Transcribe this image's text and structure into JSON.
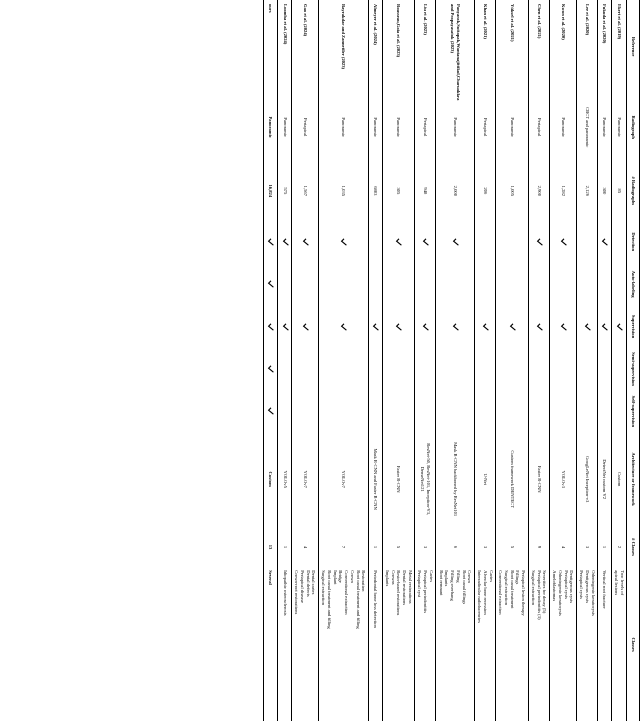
{
  "headers": {
    "ref": "Reference",
    "radiograph": "Radiograph",
    "n_radiographs": "# Radiographs",
    "detection": "Detection",
    "auto_labeling": "Auto-labeling",
    "supervision": "Supervision",
    "semi": "Semi-supervision",
    "self": "Self-supervision",
    "arch": "Architecture or framework",
    "n_classes": "# Classes",
    "classes": "Classes"
  },
  "footer": {
    "label": "ours",
    "radiograph": "Panoramic",
    "n_radiographs": "16,824",
    "n_classes": "13",
    "classes": "Several"
  },
  "rows": [
    {
      "ref": "Ekert et al. (2019)",
      "rad": "Panoramic",
      "n": "85",
      "det": false,
      "auto": false,
      "sup": true,
      "semi": false,
      "self": false,
      "arch": "Custom",
      "ncls": "2",
      "cls": [
        "Two levels of",
        "apical lesions"
      ]
    },
    {
      "ref": "Fukuda et al. (2020)",
      "rad": "Panoramic",
      "n": "300",
      "det": true,
      "auto": false,
      "sup": true,
      "semi": false,
      "self": false,
      "arch": "DetectNet custom V2",
      "ncls": "1",
      "cls": [
        "Vertical root fracture"
      ]
    },
    {
      "ref": "Lee et al. (2020)",
      "rad": "CBCT and panoramic",
      "n": "2,126",
      "det": false,
      "auto": false,
      "sup": true,
      "semi": false,
      "self": false,
      "arch": "GoogLeNet Inception-v3",
      "ncls": "3",
      "cls": [
        "Odontogenic keratocysts",
        "Dentigerous cysts",
        "Periapical cysts"
      ]
    },
    {
      "ref": "Kwon et al. (2020)",
      "rad": "Panoramic",
      "n": "1,282",
      "det": true,
      "auto": false,
      "sup": true,
      "semi": false,
      "self": false,
      "arch": "YOLOv3",
      "ncls": "4",
      "cls": [
        "Dentigerous cysts",
        "Periapical cysts",
        "Odontogenic keratocysts",
        "Ameloblastomas"
      ]
    },
    {
      "ref": "Chen et al. (2021)",
      "rad": "Periapical",
      "n": "2,900",
      "det": true,
      "auto": false,
      "sup": true,
      "semi": false,
      "self": false,
      "arch": "Faster R-CNN",
      "ncls": "9",
      "cls": [
        "Severities for decay (5)",
        "Periapical periodontitis (3)",
        "Surgical extraction"
      ]
    },
    {
      "ref": "Yüksel et al. (2021)",
      "rad": "Panoramic",
      "n": "1,005",
      "det": false,
      "auto": false,
      "sup": true,
      "semi": false,
      "self": false,
      "arch": "Custom framework DENTECT",
      "ncls": "5",
      "cls": [
        "Periapical lesion therapy",
        "Fillings",
        "Root canal treatment",
        "Surgical extraction",
        "Conventional extraction"
      ]
    },
    {
      "ref": "Khan et al. (2021)",
      "rad": "Periapical",
      "n": "206",
      "det": false,
      "auto": false,
      "sup": true,
      "semi": false,
      "self": false,
      "arch": "U-Net",
      "ncls": "3",
      "cls": [
        "Caries",
        "Alveolar bone recession",
        "Interradicular radiolucencies"
      ]
    },
    {
      "ref": "Panyarak,Suttapak,Wantanajittikul,Charuakkra and Prapayasatok (2023)",
      "rad": "Panoramic",
      "n": "2,000",
      "det": true,
      "auto": false,
      "sup": true,
      "semi": false,
      "self": false,
      "arch": "Mask R-CNN backboned by ResNet101",
      "ncls": "6",
      "cls": [
        "Crown",
        "Root canal fillings",
        "Filling",
        "Filling overhang",
        "Implants",
        "Root remnant"
      ]
    },
    {
      "ref": "Liu et al. (2023)",
      "rad": "Periapical",
      "n": "948",
      "det": true,
      "auto": false,
      "sup": true,
      "semi": false,
      "self": false,
      "arch": "ResNet-50, ResNet-101, Inception-V3, DenseNet121",
      "ncls": "3",
      "cls": [
        "Caries",
        "Periapical periodontitis",
        "Periapical cyst"
      ]
    },
    {
      "ref": "Rousseau,Gaia et al. (2023)",
      "rad": "Panoramic",
      "n": "305",
      "det": true,
      "auto": false,
      "sup": true,
      "semi": false,
      "self": false,
      "arch": "Faster R-CNN",
      "ncls": "5",
      "cls": [
        "Metal restorations",
        "Dental restorations",
        "Resin-based restorations",
        "Crowns",
        "Implants"
      ]
    },
    {
      "ref": "Almeyer et al. (2024)",
      "rad": "Panoramic",
      "n": "6803",
      "det": false,
      "auto": false,
      "sup": true,
      "semi": false,
      "self": false,
      "arch": "Mask R-CNN and Faster R-CNN",
      "ncls": "1",
      "cls": [
        "Periodontal bone loss detection"
      ]
    },
    {
      "ref": "Bayrakdar and Zannetiler (2023)",
      "rad": "Panoramic",
      "n": "1,035",
      "det": true,
      "auto": false,
      "sup": true,
      "semi": false,
      "self": false,
      "arch": "YOLOv7",
      "ncls": "7",
      "cls": [
        "Restoration",
        "Root canal treatment and filling",
        "Crown",
        "Conventional extraction",
        "Bridge",
        "Implant",
        "Root canal treatment and filling",
        "Surgical extraction"
      ]
    },
    {
      "ref": "Gao et al. (2024)",
      "rad": "Periapical",
      "n": "1,567",
      "det": true,
      "auto": false,
      "sup": true,
      "semi": false,
      "self": false,
      "arch": "YOLOv7",
      "ncls": "4",
      "cls": [
        "Dental caries",
        "Dental defects",
        "Periapical disease",
        "Crown-root restorations"
      ]
    },
    {
      "ref": "Loomba et al. (2024)",
      "rad": "Panoramic",
      "n": "575",
      "det": true,
      "auto": false,
      "sup": true,
      "semi": false,
      "self": false,
      "arch": "YOLOv5",
      "ncls": "1",
      "cls": [
        "Idiopathic osteosclerosis"
      ]
    }
  ]
}
